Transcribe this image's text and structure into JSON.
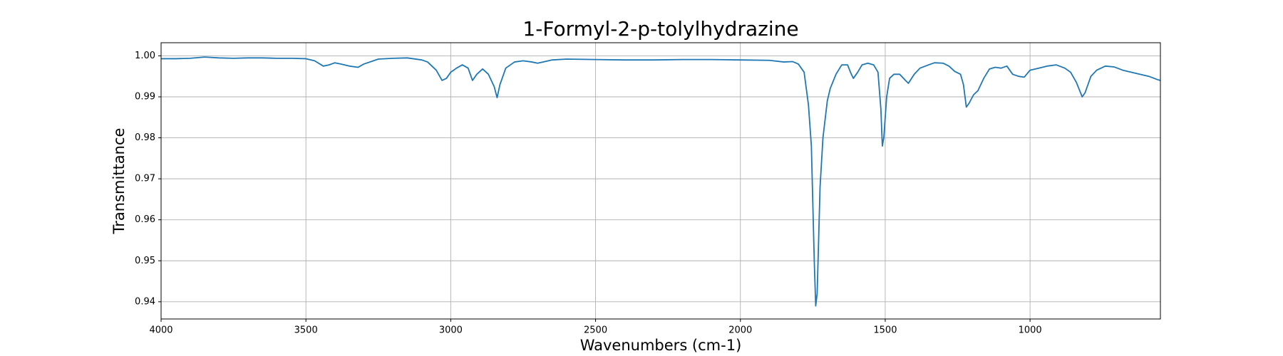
{
  "chart_data": {
    "type": "line",
    "title": "1-Formyl-2-p-tolylhydrazine",
    "xlabel": "Wavenumbers (cm-1)",
    "ylabel": "Transmittance",
    "color": "#1f77b4",
    "grid": true,
    "xlim": [
      4000,
      550
    ],
    "ylim": [
      0.9358,
      1.0032
    ],
    "xticks": [
      4000,
      3500,
      3000,
      2500,
      2000,
      1500,
      1000
    ],
    "yticks": [
      0.94,
      0.95,
      0.96,
      0.97,
      0.98,
      0.99,
      {
        "value": 1,
        "label": "1.00"
      }
    ],
    "x": [
      4000,
      3950,
      3900,
      3850,
      3800,
      3750,
      3700,
      3650,
      3600,
      3550,
      3500,
      3470,
      3440,
      3420,
      3400,
      3380,
      3350,
      3320,
      3300,
      3250,
      3200,
      3150,
      3100,
      3080,
      3050,
      3030,
      3015,
      3000,
      2980,
      2960,
      2940,
      2925,
      2910,
      2890,
      2870,
      2850,
      2840,
      2830,
      2810,
      2780,
      2750,
      2720,
      2700,
      2650,
      2600,
      2500,
      2400,
      2300,
      2200,
      2100,
      2000,
      1900,
      1850,
      1820,
      1800,
      1780,
      1765,
      1755,
      1745,
      1740,
      1735,
      1725,
      1715,
      1700,
      1690,
      1670,
      1650,
      1630,
      1620,
      1610,
      1595,
      1580,
      1560,
      1540,
      1525,
      1515,
      1510,
      1505,
      1495,
      1485,
      1470,
      1450,
      1430,
      1420,
      1400,
      1380,
      1350,
      1330,
      1300,
      1280,
      1260,
      1240,
      1230,
      1220,
      1210,
      1195,
      1180,
      1160,
      1140,
      1120,
      1100,
      1080,
      1060,
      1040,
      1020,
      1000,
      970,
      940,
      910,
      880,
      860,
      840,
      820,
      810,
      790,
      770,
      740,
      710,
      680,
      650,
      620,
      590,
      560,
      550
    ],
    "values": [
      0.9993,
      0.9993,
      0.9994,
      0.9997,
      0.9995,
      0.9994,
      0.9995,
      0.9995,
      0.9994,
      0.9994,
      0.9993,
      0.9988,
      0.9975,
      0.9978,
      0.9983,
      0.998,
      0.9975,
      0.9972,
      0.998,
      0.9992,
      0.9994,
      0.9995,
      0.999,
      0.9985,
      0.9965,
      0.994,
      0.9945,
      0.996,
      0.997,
      0.9978,
      0.997,
      0.994,
      0.9955,
      0.9968,
      0.9955,
      0.9925,
      0.9898,
      0.993,
      0.997,
      0.9985,
      0.9988,
      0.9985,
      0.9982,
      0.999,
      0.9992,
      0.9991,
      0.999,
      0.999,
      0.9991,
      0.9991,
      0.999,
      0.9989,
      0.9985,
      0.9986,
      0.998,
      0.996,
      0.988,
      0.978,
      0.95,
      0.939,
      0.942,
      0.968,
      0.98,
      0.989,
      0.992,
      0.9955,
      0.9978,
      0.9978,
      0.996,
      0.9945,
      0.996,
      0.9978,
      0.9982,
      0.9978,
      0.996,
      0.987,
      0.978,
      0.98,
      0.99,
      0.9945,
      0.9955,
      0.9955,
      0.994,
      0.9933,
      0.9955,
      0.997,
      0.9978,
      0.9983,
      0.9982,
      0.9975,
      0.9962,
      0.9955,
      0.993,
      0.9875,
      0.9885,
      0.9905,
      0.9915,
      0.9945,
      0.9968,
      0.9972,
      0.997,
      0.9975,
      0.9955,
      0.995,
      0.9948,
      0.9965,
      0.997,
      0.9975,
      0.9978,
      0.997,
      0.996,
      0.9935,
      0.99,
      0.991,
      0.995,
      0.9965,
      0.9975,
      0.9973,
      0.9965,
      0.996,
      0.9955,
      0.995,
      0.9942,
      0.994
    ]
  }
}
